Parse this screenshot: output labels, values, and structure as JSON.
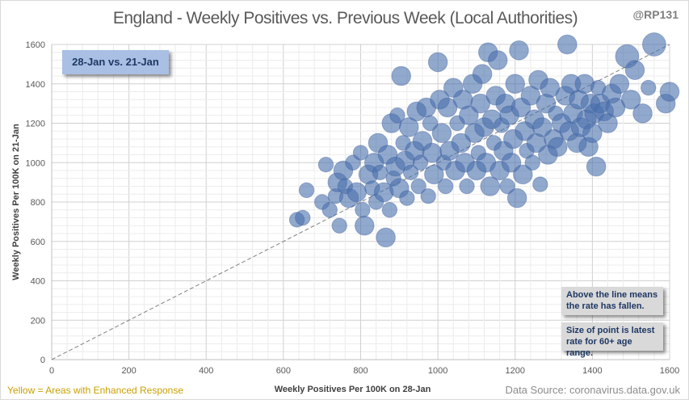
{
  "chart_data": {
    "type": "scatter",
    "title": "England - Weekly Positives vs. Previous Week (Local Authorities)",
    "xlabel": "Weekly Positives Per 100K on 28-Jan",
    "ylabel": "Weekly Positives Per 100K on 21-Jan",
    "xlim": [
      0,
      1600
    ],
    "ylim": [
      0,
      1600
    ],
    "xticks": [
      "0",
      "200",
      "400",
      "600",
      "800",
      "1000",
      "1200",
      "1400",
      "1600"
    ],
    "yticks": [
      "0",
      "200",
      "400",
      "600",
      "800",
      "1000",
      "1200",
      "1400",
      "1600"
    ],
    "grid": true,
    "reference_line": "y = x (dashed)",
    "bubble_color": "#4a6fae",
    "size_meaning": "latest rate for 60+ age range (relative)",
    "points": [
      [
        635,
        710,
        2
      ],
      [
        650,
        720,
        2
      ],
      [
        660,
        860,
        2
      ],
      [
        700,
        800,
        2
      ],
      [
        710,
        990,
        2
      ],
      [
        720,
        760,
        2
      ],
      [
        735,
        830,
        2
      ],
      [
        740,
        900,
        3
      ],
      [
        745,
        680,
        2
      ],
      [
        755,
        960,
        3
      ],
      [
        760,
        880,
        2
      ],
      [
        770,
        820,
        3
      ],
      [
        780,
        1000,
        2
      ],
      [
        790,
        850,
        3
      ],
      [
        800,
        1050,
        2
      ],
      [
        805,
        760,
        2
      ],
      [
        810,
        680,
        3
      ],
      [
        820,
        940,
        3
      ],
      [
        830,
        870,
        2
      ],
      [
        835,
        1000,
        3
      ],
      [
        840,
        800,
        2
      ],
      [
        845,
        1100,
        3
      ],
      [
        850,
        950,
        2
      ],
      [
        860,
        850,
        3
      ],
      [
        865,
        620,
        3
      ],
      [
        870,
        1040,
        3
      ],
      [
        875,
        760,
        2
      ],
      [
        880,
        1200,
        3
      ],
      [
        885,
        920,
        2
      ],
      [
        890,
        980,
        3
      ],
      [
        895,
        1240,
        2
      ],
      [
        900,
        870,
        3
      ],
      [
        905,
        1440,
        3
      ],
      [
        910,
        1100,
        2
      ],
      [
        915,
        1010,
        3
      ],
      [
        920,
        820,
        2
      ],
      [
        925,
        1180,
        3
      ],
      [
        930,
        950,
        2
      ],
      [
        940,
        1060,
        3
      ],
      [
        945,
        1260,
        3
      ],
      [
        950,
        880,
        2
      ],
      [
        955,
        1000,
        2
      ],
      [
        960,
        1110,
        3
      ],
      [
        970,
        1280,
        3
      ],
      [
        975,
        830,
        2
      ],
      [
        980,
        1200,
        2
      ],
      [
        985,
        1050,
        3
      ],
      [
        990,
        940,
        3
      ],
      [
        1000,
        1510,
        3
      ],
      [
        1005,
        1320,
        3
      ],
      [
        1010,
        1150,
        3
      ],
      [
        1015,
        1000,
        2
      ],
      [
        1020,
        880,
        2
      ],
      [
        1025,
        1280,
        3
      ],
      [
        1030,
        1060,
        3
      ],
      [
        1040,
        1380,
        3
      ],
      [
        1045,
        960,
        3
      ],
      [
        1050,
        1200,
        2
      ],
      [
        1060,
        1100,
        3
      ],
      [
        1065,
        1320,
        3
      ],
      [
        1070,
        1000,
        3
      ],
      [
        1075,
        880,
        2
      ],
      [
        1080,
        1240,
        3
      ],
      [
        1090,
        1400,
        3
      ],
      [
        1095,
        1150,
        3
      ],
      [
        1100,
        960,
        3
      ],
      [
        1105,
        1050,
        2
      ],
      [
        1110,
        1300,
        3
      ],
      [
        1115,
        1450,
        3
      ],
      [
        1120,
        1180,
        3
      ],
      [
        1125,
        1000,
        3
      ],
      [
        1130,
        1560,
        3
      ],
      [
        1135,
        880,
        3
      ],
      [
        1140,
        1220,
        3
      ],
      [
        1145,
        1100,
        2
      ],
      [
        1150,
        1340,
        3
      ],
      [
        1155,
        1520,
        3
      ],
      [
        1160,
        960,
        3
      ],
      [
        1165,
        1190,
        2
      ],
      [
        1170,
        1060,
        3
      ],
      [
        1175,
        1300,
        3
      ],
      [
        1180,
        880,
        2
      ],
      [
        1185,
        1240,
        3
      ],
      [
        1190,
        1000,
        3
      ],
      [
        1195,
        1120,
        3
      ],
      [
        1200,
        1400,
        3
      ],
      [
        1205,
        820,
        3
      ],
      [
        1210,
        1570,
        3
      ],
      [
        1215,
        1280,
        3
      ],
      [
        1220,
        940,
        3
      ],
      [
        1225,
        1160,
        3
      ],
      [
        1230,
        1060,
        2
      ],
      [
        1240,
        1340,
        3
      ],
      [
        1245,
        1000,
        2
      ],
      [
        1250,
        1220,
        3
      ],
      [
        1255,
        1100,
        3
      ],
      [
        1260,
        1420,
        3
      ],
      [
        1265,
        890,
        2
      ],
      [
        1270,
        1180,
        3
      ],
      [
        1280,
        1300,
        3
      ],
      [
        1285,
        1040,
        3
      ],
      [
        1290,
        1380,
        3
      ],
      [
        1300,
        1120,
        3
      ],
      [
        1305,
        1250,
        2
      ],
      [
        1310,
        1080,
        3
      ],
      [
        1320,
        1200,
        3
      ],
      [
        1330,
        1340,
        3
      ],
      [
        1335,
        1600,
        3
      ],
      [
        1340,
        1160,
        3
      ],
      [
        1345,
        1400,
        3
      ],
      [
        1350,
        1250,
        3
      ],
      [
        1360,
        1100,
        3
      ],
      [
        1365,
        1320,
        3
      ],
      [
        1370,
        1180,
        3
      ],
      [
        1380,
        1400,
        3
      ],
      [
        1385,
        1220,
        3
      ],
      [
        1390,
        1080,
        3
      ],
      [
        1395,
        1300,
        3
      ],
      [
        1400,
        1150,
        3
      ],
      [
        1405,
        1250,
        3
      ],
      [
        1410,
        980,
        3
      ],
      [
        1415,
        1380,
        2
      ],
      [
        1420,
        1300,
        3
      ],
      [
        1430,
        1260,
        3
      ],
      [
        1440,
        1200,
        3
      ],
      [
        1450,
        1350,
        3
      ],
      [
        1460,
        1280,
        3
      ],
      [
        1470,
        1400,
        3
      ],
      [
        1490,
        1540,
        4
      ],
      [
        1500,
        1320,
        3
      ],
      [
        1510,
        1470,
        3
      ],
      [
        1530,
        1250,
        3
      ],
      [
        1545,
        1380,
        2
      ],
      [
        1560,
        1600,
        4
      ],
      [
        1590,
        1300,
        3
      ],
      [
        1600,
        1360,
        3
      ]
    ]
  },
  "labels": {
    "handle": "@RP131",
    "date_box": "28-Jan vs. 21-Jan",
    "note_line": "Above the line means the rate has fallen.",
    "note_size": "Size of point is latest rate for 60+ age range.",
    "yellow_note": "Yellow = Areas with Enhanced Response",
    "source": "Data Source: coronavirus.data.gov.uk"
  }
}
